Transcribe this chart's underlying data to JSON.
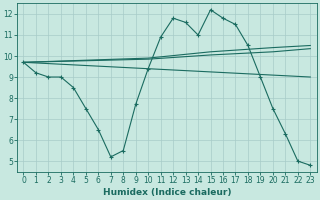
{
  "xlabel": "Humidex (Indice chaleur)",
  "bg_color": "#c8e8e0",
  "grid_color": "#a8ccc8",
  "line_color": "#1a6b60",
  "xlim": [
    -0.5,
    23.5
  ],
  "ylim": [
    4.5,
    12.5
  ],
  "yticks": [
    5,
    6,
    7,
    8,
    9,
    10,
    11,
    12
  ],
  "xticks": [
    0,
    1,
    2,
    3,
    4,
    5,
    6,
    7,
    8,
    9,
    10,
    11,
    12,
    13,
    14,
    15,
    16,
    17,
    18,
    19,
    20,
    21,
    22,
    23
  ],
  "zigzag": {
    "x": [
      0,
      1,
      2,
      3,
      4,
      5,
      6,
      7,
      8,
      9,
      10,
      11,
      12,
      13,
      14,
      15,
      16,
      17,
      18,
      19,
      20,
      21,
      22,
      23
    ],
    "y": [
      9.7,
      9.2,
      9.0,
      9.0,
      8.5,
      7.5,
      6.5,
      5.2,
      5.5,
      7.7,
      9.4,
      10.9,
      11.8,
      11.6,
      11.0,
      12.2,
      11.8,
      11.5,
      10.5,
      9.0,
      7.5,
      6.3,
      5.0,
      4.8
    ]
  },
  "trend_lines": [
    {
      "x": [
        0,
        23
      ],
      "y": [
        9.7,
        9.0
      ]
    },
    {
      "x": [
        0,
        10,
        15,
        20,
        23
      ],
      "y": [
        9.7,
        9.9,
        10.2,
        10.4,
        10.5
      ]
    },
    {
      "x": [
        0,
        10,
        15,
        20,
        23
      ],
      "y": [
        9.7,
        9.85,
        10.05,
        10.2,
        10.35
      ]
    }
  ]
}
